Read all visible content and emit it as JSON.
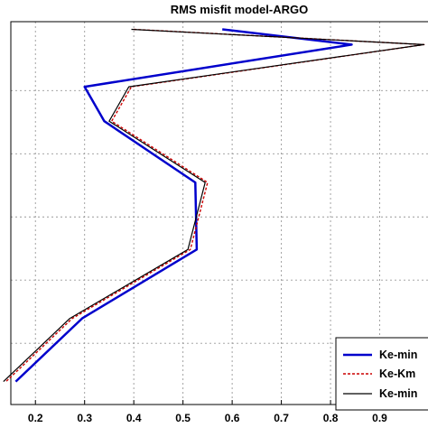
{
  "chart_data": {
    "type": "line",
    "title": "RMS misfit model-ARGO",
    "xlabel": "",
    "ylabel": "",
    "xlim": [
      0.15,
      1.0
    ],
    "ylim": [
      0,
      1
    ],
    "xticks": [
      0.2,
      0.3,
      0.4,
      0.5,
      0.6,
      0.7,
      0.8,
      0.9
    ],
    "xtick_labels": [
      "0.2",
      "0.3",
      "0.4",
      "0.5",
      "0.6",
      "0.7",
      "0.8",
      "0.9"
    ],
    "grid": true,
    "legend_position": "bottom-right",
    "series": [
      {
        "name": "Ke-min",
        "color": "#0000cc",
        "style": "solid",
        "x": [
          0.58,
          0.843,
          0.3,
          0.34,
          0.525,
          0.528,
          0.295,
          0.16
        ],
        "y": [
          0.98,
          0.94,
          0.83,
          0.74,
          0.58,
          0.405,
          0.225,
          0.06
        ]
      },
      {
        "name": "Ke-Km",
        "color": "#cc0000",
        "style": "dashed",
        "x": [
          0.4,
          0.99,
          0.395,
          0.355,
          0.55,
          0.515,
          0.275,
          0.14
        ],
        "y": [
          0.98,
          0.94,
          0.83,
          0.74,
          0.58,
          0.405,
          0.225,
          0.06
        ]
      },
      {
        "name": "Ke-min",
        "color": "#000000",
        "style": "solid",
        "x": [
          0.395,
          0.99,
          0.39,
          0.35,
          0.545,
          0.51,
          0.27,
          0.135
        ],
        "y": [
          0.98,
          0.94,
          0.83,
          0.74,
          0.58,
          0.405,
          0.225,
          0.06
        ]
      }
    ]
  }
}
